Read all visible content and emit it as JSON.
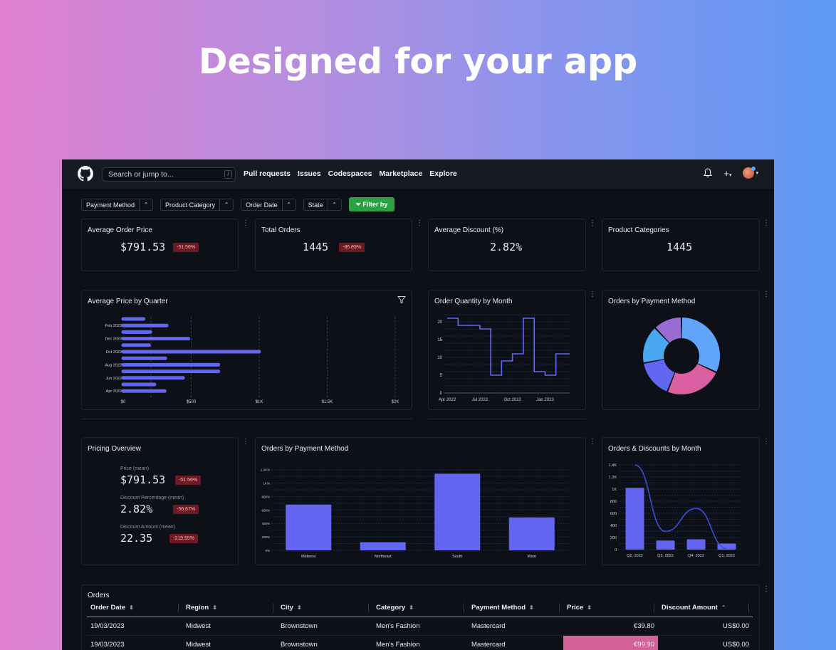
{
  "hero": {
    "title": "Designed for your app"
  },
  "nav": {
    "search_placeholder": "Search or jump to...",
    "search_shortcut": "/",
    "links": [
      "Pull requests",
      "Issues",
      "Codespaces",
      "Marketplace",
      "Explore"
    ],
    "plus_label": "+"
  },
  "filters": {
    "items": [
      "Payment Method",
      "Product Category",
      "Order Date",
      "State"
    ],
    "apply_label": "Filter by"
  },
  "kpis": [
    {
      "title": "Average Order Price",
      "value": "$791.53",
      "delta": "-51.56%"
    },
    {
      "title": "Total Orders",
      "value": "1445",
      "delta": "-86.89%"
    },
    {
      "title": "Average Discount (%)",
      "value": "2.82%"
    },
    {
      "title": "Product Categories",
      "value": "1445"
    }
  ],
  "pricing_overview": {
    "title": "Pricing Overview",
    "items": [
      {
        "label": "Price (mean)",
        "value": "$791.53",
        "delta": "-51.56%"
      },
      {
        "label": "Discount Percentage (mean)",
        "value": "2.82%",
        "delta": "-56.67%"
      },
      {
        "label": "Discount Amount (mean)",
        "value": "22.35",
        "delta": "-219.55%"
      }
    ]
  },
  "chart_data": [
    {
      "type": "bar",
      "orientation": "horizontal",
      "title": "Average Price by Quarter",
      "categories": [
        "",
        "Feb 2023",
        "",
        "Dec 2022",
        "",
        "Oct 2022",
        "",
        "Aug 2022",
        "",
        "Jun 2022",
        "",
        "Apr 2022"
      ],
      "values": [
        150,
        320,
        200,
        480,
        190,
        1000,
        310,
        700,
        700,
        440,
        230,
        305
      ],
      "xticks": [
        "$0",
        "$500",
        "$1K",
        "$1.5K",
        "$2K"
      ],
      "xlim": [
        0,
        2000
      ],
      "grid": true,
      "color": "#6366f1"
    },
    {
      "type": "line",
      "title": "Order Quantity by Month",
      "step": true,
      "x": [
        "Apr 2022",
        "May 2022",
        "Jun 2022",
        "Jul 2022",
        "Aug 2022",
        "Sep 2022",
        "Oct 2022",
        "Nov 2022",
        "Dec 2022",
        "Jan 2023",
        "Feb 2023",
        "Mar 2023"
      ],
      "values": [
        21,
        19,
        19,
        18,
        5,
        9,
        11,
        21,
        6,
        5,
        11,
        11
      ],
      "xticks": [
        "Apr 2022",
        "Jul 2022",
        "Oct 2022",
        "Jan 2023"
      ],
      "yticks": [
        "0",
        "5",
        "10",
        "15",
        "20"
      ],
      "ylim": [
        0,
        22
      ],
      "color": "#6366f1"
    },
    {
      "type": "pie",
      "donut": true,
      "title": "Orders by Payment Method",
      "values": [
        32,
        24,
        16,
        16,
        12
      ],
      "colors": [
        "#60a5fa",
        "#db5fa0",
        "#6366f1",
        "#4aa8f0",
        "#9b6bd4"
      ]
    },
    {
      "type": "bar",
      "title": "Orders by Payment Method",
      "categories": [
        "Midwest",
        "Northeast",
        "South",
        "West"
      ],
      "values": [
        680,
        120,
        1140,
        490
      ],
      "yticks": [
        "0%",
        "200%",
        "400%",
        "600%",
        "800%",
        "1K%",
        "1.2K%"
      ],
      "ylim": [
        0,
        1250
      ],
      "color": "#6366f1"
    },
    {
      "type": "bar",
      "title": "Orders & Discounts by Month",
      "categories": [
        "Q2, 2022",
        "Q3, 2022",
        "Q4, 2022",
        "Q1, 2023"
      ],
      "values": [
        1020,
        150,
        170,
        100
      ],
      "line_values": [
        1400,
        300,
        680,
        20
      ],
      "yticks": [
        "0",
        "200",
        "400",
        "600",
        "800",
        "1K",
        "1.2K",
        "1.4K"
      ],
      "ylim": [
        0,
        1400
      ],
      "color": "#6366f1"
    }
  ],
  "orders": {
    "title": "Orders",
    "columns": [
      "Order Date",
      "Region",
      "City",
      "Category",
      "Payment Method",
      "Price",
      "Discount Amount"
    ],
    "sort_icons": [
      "⬍",
      "⬍",
      "⬍",
      "⬍",
      "⬍",
      "⬍",
      "⌃"
    ],
    "rows": [
      [
        "19/03/2023",
        "Midwest",
        "Brownstown",
        "Men's Fashion",
        "Mastercard",
        "€39.80",
        "US$0.00"
      ],
      [
        "19/03/2023",
        "Midwest",
        "Brownstown",
        "Men's Fashion",
        "Mastercard",
        "€99.90",
        "US$0.00"
      ]
    ]
  }
}
